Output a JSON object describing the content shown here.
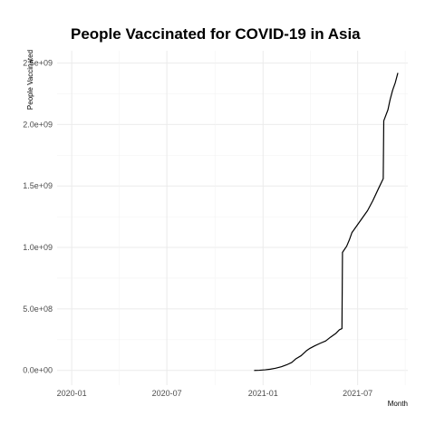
{
  "chart_data": {
    "type": "line",
    "title": "People Vaccinated for COVID-19 in Asia",
    "xlabel": "Month",
    "ylabel": "People Vaccinated",
    "x_ticks": [
      "2020-01",
      "2020-07",
      "2021-01",
      "2021-07"
    ],
    "y_ticks": [
      "0.0e+00",
      "5.0e+08",
      "1.0e+09",
      "1.5e+09",
      "2.0e+09",
      "2.5e+09"
    ],
    "y_tick_values": [
      0,
      500000000,
      1000000000,
      1500000000,
      2000000000,
      2500000000
    ],
    "xlim": [
      "2019-12-04",
      "2021-10-05"
    ],
    "ylim": [
      -120000000,
      2600000000
    ],
    "grid": true,
    "legend": "none",
    "series": [
      {
        "x": [
          "2020-12-15",
          "2020-12-25",
          "2021-01-05",
          "2021-01-15",
          "2021-01-25",
          "2021-02-05",
          "2021-02-15",
          "2021-02-25",
          "2021-03-05",
          "2021-03-15",
          "2021-03-25",
          "2021-04-01",
          "2021-04-10",
          "2021-04-20",
          "2021-05-01",
          "2021-05-10",
          "2021-05-20",
          "2021-05-27",
          "2021-06-01",
          "2021-06-02",
          "2021-06-10",
          "2021-06-15",
          "2021-06-20",
          "2021-06-30",
          "2021-07-10",
          "2021-07-20",
          "2021-07-30",
          "2021-08-10",
          "2021-08-19",
          "2021-08-20",
          "2021-08-28",
          "2021-09-01",
          "2021-09-06",
          "2021-09-11",
          "2021-09-16"
        ],
        "y": [
          0,
          1000000,
          5000000,
          10000000,
          18000000,
          30000000,
          45000000,
          65000000,
          95000000,
          120000000,
          160000000,
          180000000,
          200000000,
          220000000,
          240000000,
          270000000,
          300000000,
          330000000,
          340000000,
          960000000,
          1010000000,
          1060000000,
          1120000000,
          1180000000,
          1240000000,
          1300000000,
          1380000000,
          1480000000,
          1560000000,
          2030000000,
          2120000000,
          2200000000,
          2280000000,
          2340000000,
          2420000000
        ]
      }
    ]
  }
}
